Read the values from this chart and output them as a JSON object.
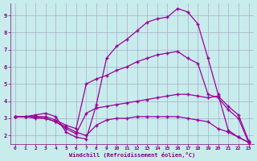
{
  "background_color": "#c8ecec",
  "line_color": "#990099",
  "grid_color": "#aaaacc",
  "xlabel": "Windchill (Refroidissement éolien,°C)",
  "xlabel_color": "#800080",
  "tick_color": "#800080",
  "xlim": [
    -0.5,
    23.5
  ],
  "ylim": [
    1.5,
    9.7
  ],
  "xticks": [
    0,
    1,
    2,
    3,
    4,
    5,
    6,
    7,
    8,
    9,
    10,
    11,
    12,
    13,
    14,
    15,
    16,
    17,
    18,
    19,
    20,
    21,
    22,
    23
  ],
  "yticks": [
    2,
    3,
    4,
    5,
    6,
    7,
    8,
    9
  ],
  "lines": [
    {
      "x": [
        0,
        1,
        2,
        3,
        4,
        5,
        6,
        7,
        8,
        9,
        10,
        11,
        12,
        13,
        14,
        15,
        16,
        17,
        18,
        19,
        20,
        21,
        22,
        23
      ],
      "y": [
        3.1,
        3.1,
        3.2,
        3.3,
        3.1,
        2.2,
        1.9,
        1.8,
        3.8,
        6.5,
        7.2,
        7.6,
        8.1,
        8.6,
        8.8,
        8.9,
        9.4,
        9.2,
        8.5,
        6.5,
        4.4,
        2.3,
        1.9,
        1.6
      ]
    },
    {
      "x": [
        0,
        1,
        2,
        3,
        4,
        5,
        6,
        7,
        8,
        9,
        10,
        11,
        12,
        13,
        14,
        15,
        16,
        17,
        18,
        19,
        20,
        21,
        22,
        23
      ],
      "y": [
        3.1,
        3.1,
        3.1,
        3.1,
        2.9,
        2.6,
        2.4,
        5.0,
        5.3,
        5.5,
        5.8,
        6.0,
        6.3,
        6.5,
        6.7,
        6.8,
        6.9,
        6.5,
        6.2,
        4.4,
        4.2,
        3.5,
        3.0,
        1.6
      ]
    },
    {
      "x": [
        0,
        1,
        2,
        3,
        4,
        5,
        6,
        7,
        8,
        9,
        10,
        11,
        12,
        13,
        14,
        15,
        16,
        17,
        18,
        19,
        20,
        21,
        22,
        23
      ],
      "y": [
        3.1,
        3.1,
        3.1,
        3.0,
        2.8,
        2.4,
        2.1,
        3.3,
        3.6,
        3.7,
        3.8,
        3.9,
        4.0,
        4.1,
        4.2,
        4.3,
        4.4,
        4.4,
        4.3,
        4.2,
        4.3,
        3.7,
        3.2,
        1.7
      ]
    },
    {
      "x": [
        0,
        1,
        2,
        3,
        4,
        5,
        6,
        7,
        8,
        9,
        10,
        11,
        12,
        13,
        14,
        15,
        16,
        17,
        18,
        19,
        20,
        21,
        22,
        23
      ],
      "y": [
        3.1,
        3.1,
        3.0,
        3.0,
        2.8,
        2.5,
        2.2,
        2.0,
        2.6,
        2.9,
        3.0,
        3.0,
        3.1,
        3.1,
        3.1,
        3.1,
        3.1,
        3.0,
        2.9,
        2.8,
        2.4,
        2.2,
        1.9,
        1.6
      ]
    }
  ],
  "marker": "+",
  "markersize": 3,
  "markeredgewidth": 1.0,
  "linewidth": 0.9
}
